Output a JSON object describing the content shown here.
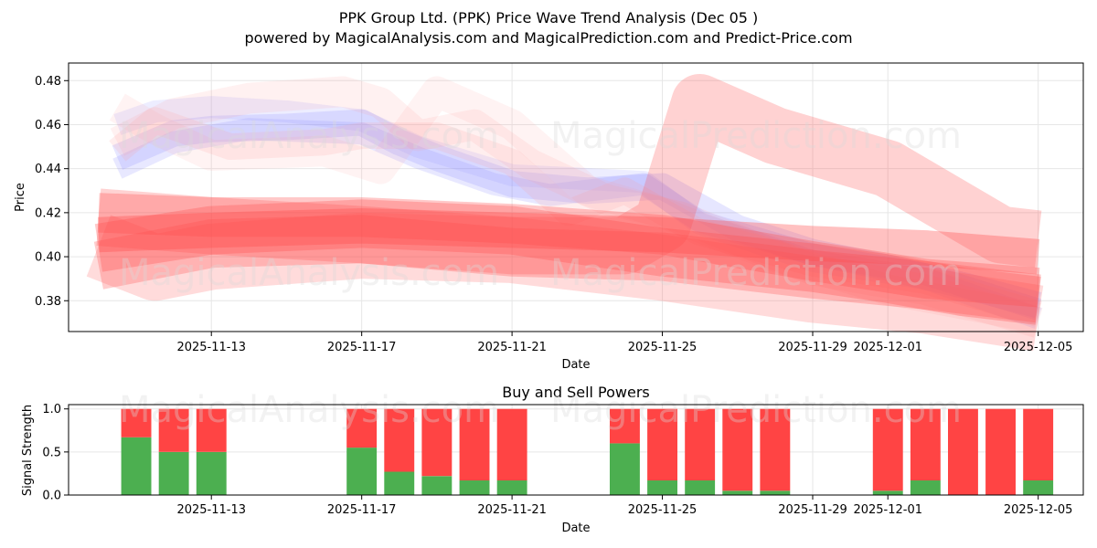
{
  "title_line1": "PPK Group Ltd. (PPK) Price Wave Trend Analysis (Dec 05 )",
  "title_line2": "powered by MagicalAnalysis.com and MagicalPrediction.com and Predict-Price.com",
  "watermarks": {
    "left": "MagicalAnalysis.com",
    "right": "MagicalPrediction.com"
  },
  "colors": {
    "buy": "#4caf50",
    "sell": "#ff4444",
    "red_band": "#ff4d4d",
    "blue_band": "#8c8cff",
    "grid": "#e6e6e6"
  },
  "chart_data": [
    {
      "type": "area",
      "title": "",
      "xlabel": "Date",
      "ylabel": "Price",
      "ylim": [
        0.366,
        0.488
      ],
      "x_tick_labels": [
        "2025-11-13",
        "2025-11-17",
        "2025-11-21",
        "2025-11-25",
        "2025-11-29",
        "2025-12-01",
        "2025-12-05"
      ],
      "x_tick_days": [
        2,
        6,
        10,
        14,
        18,
        20,
        24
      ],
      "y_ticks": [
        0.38,
        0.4,
        0.42,
        0.44,
        0.46,
        0.48
      ],
      "y_tick_labels": [
        "0.38",
        "0.40",
        "0.42",
        "0.44",
        "0.46",
        "0.48"
      ],
      "x_day_range": [
        -1.8,
        25.2
      ],
      "series": [
        {
          "name": "blue-wave-1",
          "color": "blue",
          "width": 0.012,
          "opacity": 0.22,
          "x": [
            -0.5,
            1.0,
            2.0,
            4.0,
            6.0,
            7.0,
            8.0,
            10.0,
            12.0,
            14.0,
            16.0,
            18.0,
            20.0,
            22.0,
            24.0
          ],
          "y": [
            0.445,
            0.456,
            0.458,
            0.459,
            0.461,
            0.452,
            0.445,
            0.433,
            0.43,
            0.432,
            0.413,
            0.402,
            0.395,
            0.387,
            0.378
          ]
        },
        {
          "name": "blue-wave-2",
          "color": "blue",
          "width": 0.01,
          "opacity": 0.2,
          "x": [
            -0.5,
            1.0,
            3.0,
            6.0,
            7.5,
            9.5,
            11.0,
            13.5,
            15.0,
            18.0,
            21.0,
            24.0
          ],
          "y": [
            0.44,
            0.452,
            0.458,
            0.456,
            0.445,
            0.433,
            0.428,
            0.433,
            0.416,
            0.401,
            0.392,
            0.376
          ]
        },
        {
          "name": "blue-wave-3",
          "color": "blue",
          "width": 0.01,
          "opacity": 0.16,
          "x": [
            -0.5,
            0.5,
            2.0,
            4.0,
            6.0,
            7.5,
            10.0,
            13.5,
            15.0,
            18.0,
            21.0,
            24.0
          ],
          "y": [
            0.46,
            0.466,
            0.468,
            0.466,
            0.462,
            0.45,
            0.437,
            0.434,
            0.415,
            0.398,
            0.39,
            0.372
          ]
        },
        {
          "name": "pink-wave-1",
          "color": "pink",
          "width": 0.012,
          "opacity": 0.18,
          "x": [
            -0.5,
            0.5,
            2.5,
            5.0,
            6.0,
            8.0,
            10.0,
            11.5,
            13.0,
            15.0,
            18.0,
            21.0,
            24.0
          ],
          "y": [
            0.448,
            0.462,
            0.45,
            0.452,
            0.455,
            0.455,
            0.443,
            0.42,
            0.43,
            0.411,
            0.397,
            0.389,
            0.374
          ]
        },
        {
          "name": "pink-wave-2",
          "color": "pink",
          "width": 0.014,
          "opacity": 0.14,
          "x": [
            -0.5,
            1.0,
            3.0,
            5.5,
            6.5,
            7.5,
            9.0,
            10.5,
            12.5,
            14.5,
            18.0,
            21.0,
            24.0
          ],
          "y": [
            0.452,
            0.465,
            0.472,
            0.475,
            0.47,
            0.455,
            0.46,
            0.442,
            0.426,
            0.418,
            0.394,
            0.385,
            0.37
          ]
        },
        {
          "name": "pink-wave-3",
          "color": "pink",
          "width": 0.014,
          "opacity": 0.12,
          "x": [
            -0.5,
            0.5,
            2.0,
            5.0,
            6.5,
            8.0,
            10.0,
            12.0,
            14.0,
            17.0,
            20.0,
            24.0
          ],
          "y": [
            0.468,
            0.458,
            0.446,
            0.448,
            0.44,
            0.475,
            0.46,
            0.43,
            0.42,
            0.4,
            0.385,
            0.372
          ]
        },
        {
          "name": "red-band-1",
          "color": "red",
          "width": 0.016,
          "opacity": 0.35,
          "x": [
            -1.0,
            2.0,
            6.0,
            10.0,
            14.0,
            18.0,
            21.0,
            24.0
          ],
          "y": [
            0.41,
            0.412,
            0.414,
            0.412,
            0.41,
            0.406,
            0.404,
            0.4
          ]
        },
        {
          "name": "red-band-2",
          "color": "red",
          "width": 0.022,
          "opacity": 0.3,
          "x": [
            -1.0,
            2.0,
            6.0,
            10.0,
            14.0,
            18.0,
            20.0,
            22.0,
            24.0
          ],
          "y": [
            0.404,
            0.412,
            0.415,
            0.412,
            0.402,
            0.395,
            0.39,
            0.384,
            0.38
          ]
        },
        {
          "name": "red-band-3",
          "color": "red",
          "width": 0.026,
          "opacity": 0.25,
          "x": [
            -1.0,
            2.0,
            6.0,
            10.0,
            13.0,
            14.0,
            15.0,
            17.0,
            20.0,
            22.0,
            23.0,
            24.0
          ],
          "y": [
            0.418,
            0.414,
            0.41,
            0.405,
            0.405,
            0.415,
            0.47,
            0.455,
            0.44,
            0.42,
            0.41,
            0.408
          ]
        },
        {
          "name": "red-band-4",
          "color": "red",
          "width": 0.022,
          "opacity": 0.28,
          "x": [
            -1.0,
            2.0,
            6.0,
            10.0,
            14.0,
            18.0,
            21.0,
            24.0
          ],
          "y": [
            0.396,
            0.406,
            0.408,
            0.402,
            0.4,
            0.392,
            0.387,
            0.381
          ]
        },
        {
          "name": "red-band-5",
          "color": "red",
          "width": 0.03,
          "opacity": 0.2,
          "x": [
            -1.0,
            0.5,
            2.0,
            6.0,
            10.0,
            14.0,
            18.0,
            21.0,
            24.0
          ],
          "y": [
            0.405,
            0.395,
            0.4,
            0.405,
            0.403,
            0.395,
            0.385,
            0.38,
            0.372
          ]
        },
        {
          "name": "red-band-6",
          "color": "red",
          "width": 0.018,
          "opacity": 0.3,
          "x": [
            -1.0,
            2.0,
            6.0,
            10.0,
            14.0,
            18.0,
            21.0,
            24.0
          ],
          "y": [
            0.42,
            0.418,
            0.418,
            0.415,
            0.41,
            0.398,
            0.39,
            0.386
          ]
        }
      ]
    },
    {
      "type": "bar",
      "title": "Buy and Sell Powers",
      "xlabel": "Date",
      "ylabel": "Signal Strength",
      "ylim": [
        0,
        1.05
      ],
      "y_ticks": [
        0.0,
        0.5,
        1.0
      ],
      "y_tick_labels": [
        "0.0",
        "0.5",
        "1.0"
      ],
      "x_tick_labels": [
        "2025-11-13",
        "2025-11-17",
        "2025-11-21",
        "2025-11-25",
        "2025-11-29",
        "2025-12-01",
        "2025-12-05"
      ],
      "x_tick_days": [
        2,
        6,
        10,
        14,
        18,
        20,
        24
      ],
      "x_day_range": [
        -1.8,
        25.2
      ],
      "bar_days": [
        0,
        1,
        2,
        6,
        7,
        8,
        9,
        10,
        13,
        14,
        15,
        16,
        17,
        20,
        21,
        22,
        23,
        24
      ],
      "series": [
        {
          "name": "Buy",
          "values": [
            0.67,
            0.5,
            0.5,
            0.55,
            0.27,
            0.22,
            0.17,
            0.17,
            0.6,
            0.17,
            0.17,
            0.05,
            0.05,
            0.05,
            0.17,
            0.0,
            0.0,
            0.17
          ]
        },
        {
          "name": "Sell",
          "values": [
            0.33,
            0.5,
            0.5,
            0.45,
            0.73,
            0.78,
            0.83,
            0.83,
            0.4,
            0.83,
            0.83,
            0.95,
            0.95,
            0.95,
            0.83,
            1.0,
            1.0,
            0.83
          ]
        }
      ]
    }
  ]
}
